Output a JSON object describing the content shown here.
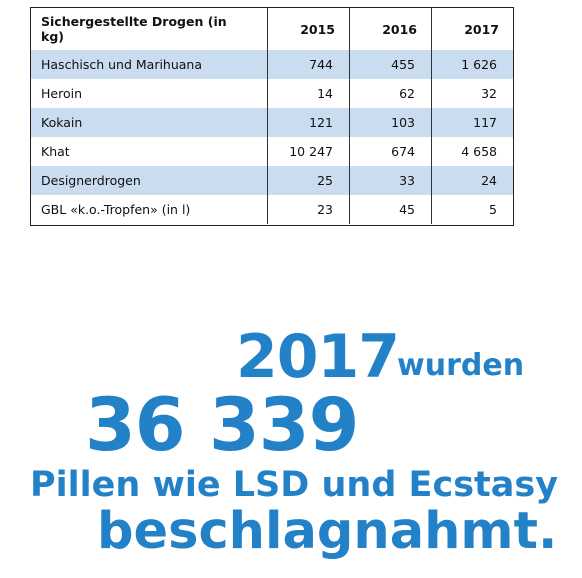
{
  "table": {
    "headers": [
      "Sichergestellte Drogen (in kg)",
      "2015",
      "2016",
      "2017"
    ],
    "rows": [
      {
        "label": "Haschisch und Marihuana",
        "v2015": "744",
        "v2016": "455",
        "v2017": "1 626"
      },
      {
        "label": "Heroin",
        "v2015": "14",
        "v2016": "62",
        "v2017": "32"
      },
      {
        "label": "Kokain",
        "v2015": "121",
        "v2016": "103",
        "v2017": "117"
      },
      {
        "label": "Khat",
        "v2015": "10 247",
        "v2016": "674",
        "v2017": "4 658"
      },
      {
        "label": "Designerdrogen",
        "v2015": "25",
        "v2016": "33",
        "v2017": "24"
      },
      {
        "label": "GBL «k.o.-Tropfen» (in l)",
        "v2015": "23",
        "v2016": "45",
        "v2017": "5"
      }
    ]
  },
  "headline": {
    "year": "2017",
    "word": "wurden",
    "number": "36 339",
    "line3": "Pillen wie LSD und Ecstasy",
    "line4": "beschlagnahmt."
  },
  "colors": {
    "accent": "#2381c8",
    "row_shade": "#c9dcf0"
  }
}
